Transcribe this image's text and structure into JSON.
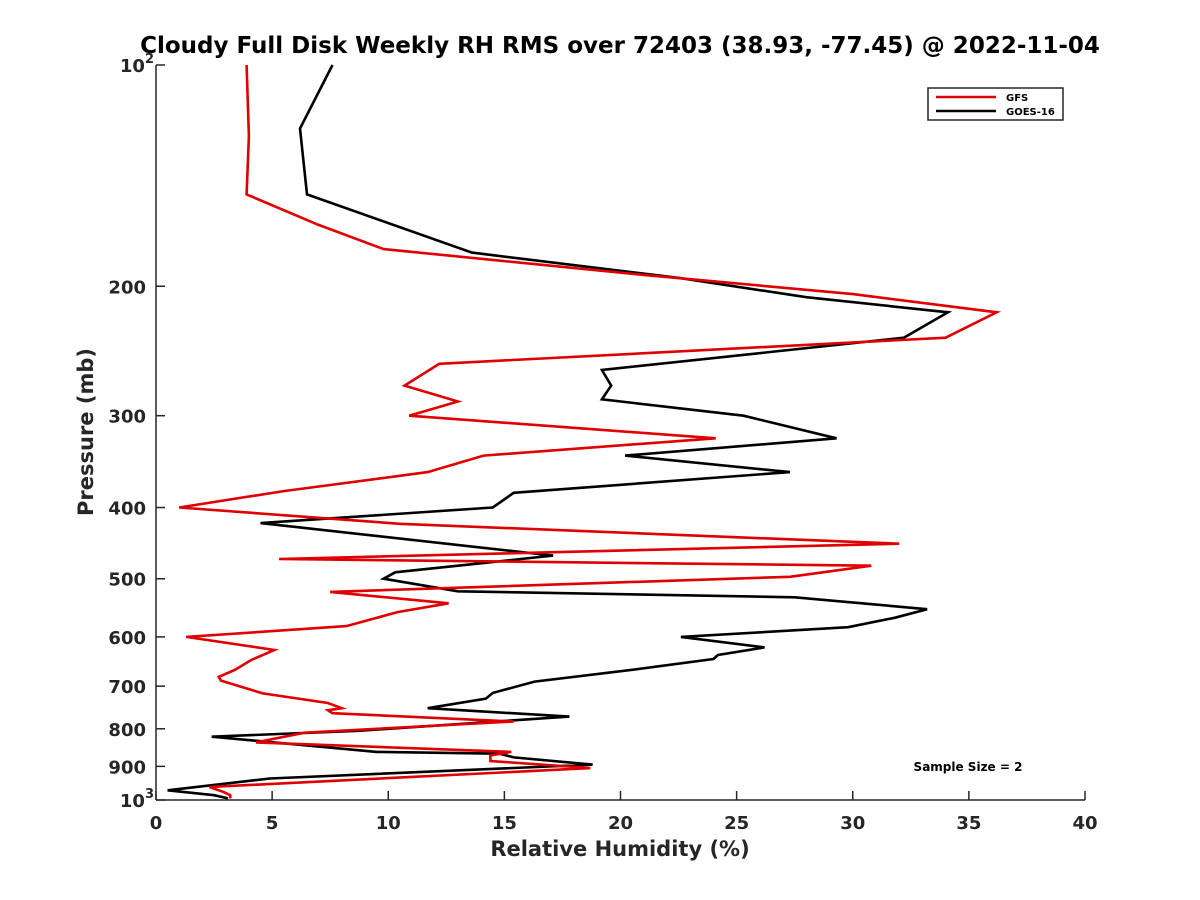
{
  "chart_data": {
    "type": "line",
    "title": "Cloudy Full Disk Weekly RH RMS over 72403 (38.93, -77.45) @ 2022-11-04",
    "xlabel": "Relative Humidity (%)",
    "ylabel": "Pressure (mb)",
    "xlim": [
      0,
      40
    ],
    "ylim": [
      100,
      1000
    ],
    "y_scale": "log",
    "y_reversed": true,
    "x_ticks": [
      "0",
      "5",
      "10",
      "15",
      "20",
      "25",
      "30",
      "35",
      "40"
    ],
    "y_ticks": [
      {
        "value": 100,
        "label": "10",
        "exp": "2"
      },
      {
        "value": 200,
        "label": "200",
        "exp": ""
      },
      {
        "value": 300,
        "label": "300",
        "exp": ""
      },
      {
        "value": 400,
        "label": "400",
        "exp": ""
      },
      {
        "value": 500,
        "label": "500",
        "exp": ""
      },
      {
        "value": 600,
        "label": "600",
        "exp": ""
      },
      {
        "value": 700,
        "label": "700",
        "exp": ""
      },
      {
        "value": 800,
        "label": "800",
        "exp": ""
      },
      {
        "value": 900,
        "label": "900",
        "exp": ""
      },
      {
        "value": 1000,
        "label": "10",
        "exp": "3"
      }
    ],
    "legend": "top-right",
    "grid": false,
    "annotation": "Sample Size = 2",
    "series": [
      {
        "name": "GFS",
        "color": "#e00000",
        "points": [
          [
            3.9,
            100
          ],
          [
            4.0,
            125
          ],
          [
            3.9,
            150
          ],
          [
            7.0,
            165
          ],
          [
            9.8,
            178
          ],
          [
            21.0,
            193
          ],
          [
            30.0,
            205
          ],
          [
            36.2,
            217
          ],
          [
            34.0,
            235
          ],
          [
            12.2,
            255
          ],
          [
            10.7,
            273
          ],
          [
            13.0,
            287
          ],
          [
            10.9,
            300
          ],
          [
            24.1,
            322
          ],
          [
            14.1,
            340
          ],
          [
            11.7,
            358
          ],
          [
            5.5,
            380
          ],
          [
            1.0,
            400
          ],
          [
            10.5,
            421
          ],
          [
            32.0,
            448
          ],
          [
            5.3,
            470
          ],
          [
            30.8,
            480
          ],
          [
            27.3,
            497
          ],
          [
            7.5,
            521
          ],
          [
            12.6,
            540
          ],
          [
            10.4,
            555
          ],
          [
            8.2,
            580
          ],
          [
            1.3,
            600
          ],
          [
            5.1,
            625
          ],
          [
            4.1,
            645
          ],
          [
            3.4,
            665
          ],
          [
            2.7,
            680
          ],
          [
            2.8,
            688
          ],
          [
            4.6,
            716
          ],
          [
            7.4,
            738
          ],
          [
            8.0,
            750
          ],
          [
            7.4,
            755
          ],
          [
            7.6,
            762
          ],
          [
            15.4,
            782
          ],
          [
            6.4,
            810
          ],
          [
            4.3,
            835
          ],
          [
            15.3,
            860
          ],
          [
            14.4,
            870
          ],
          [
            14.4,
            885
          ],
          [
            18.7,
            905
          ],
          [
            2.3,
            960
          ],
          [
            2.9,
            975
          ],
          [
            3.2,
            985
          ],
          [
            3.2,
            995
          ]
        ]
      },
      {
        "name": "GOES-16",
        "color": "#000000",
        "points": [
          [
            7.6,
            100
          ],
          [
            6.2,
            122
          ],
          [
            6.5,
            150
          ],
          [
            13.6,
            180
          ],
          [
            22.6,
            195
          ],
          [
            28.0,
            207
          ],
          [
            34.1,
            217
          ],
          [
            32.2,
            235
          ],
          [
            19.2,
            260
          ],
          [
            19.6,
            273
          ],
          [
            19.2,
            285
          ],
          [
            25.3,
            300
          ],
          [
            29.3,
            322
          ],
          [
            20.2,
            340
          ],
          [
            27.3,
            358
          ],
          [
            15.4,
            382
          ],
          [
            14.5,
            400
          ],
          [
            4.5,
            420
          ],
          [
            17.1,
            465
          ],
          [
            10.3,
            490
          ],
          [
            9.8,
            500
          ],
          [
            13.0,
            520
          ],
          [
            27.5,
            530
          ],
          [
            33.2,
            550
          ],
          [
            31.8,
            565
          ],
          [
            29.8,
            582
          ],
          [
            22.6,
            600
          ],
          [
            26.2,
            620
          ],
          [
            24.2,
            635
          ],
          [
            24.0,
            643
          ],
          [
            20.5,
            665
          ],
          [
            16.3,
            690
          ],
          [
            14.5,
            715
          ],
          [
            14.2,
            728
          ],
          [
            11.7,
            750
          ],
          [
            17.8,
            770
          ],
          [
            8.7,
            805
          ],
          [
            2.4,
            820
          ],
          [
            9.5,
            860
          ],
          [
            14.8,
            865
          ],
          [
            15.4,
            875
          ],
          [
            18.8,
            895
          ],
          [
            4.9,
            935
          ],
          [
            0.5,
            970
          ],
          [
            2.5,
            985
          ],
          [
            3.1,
            995
          ]
        ]
      }
    ]
  }
}
